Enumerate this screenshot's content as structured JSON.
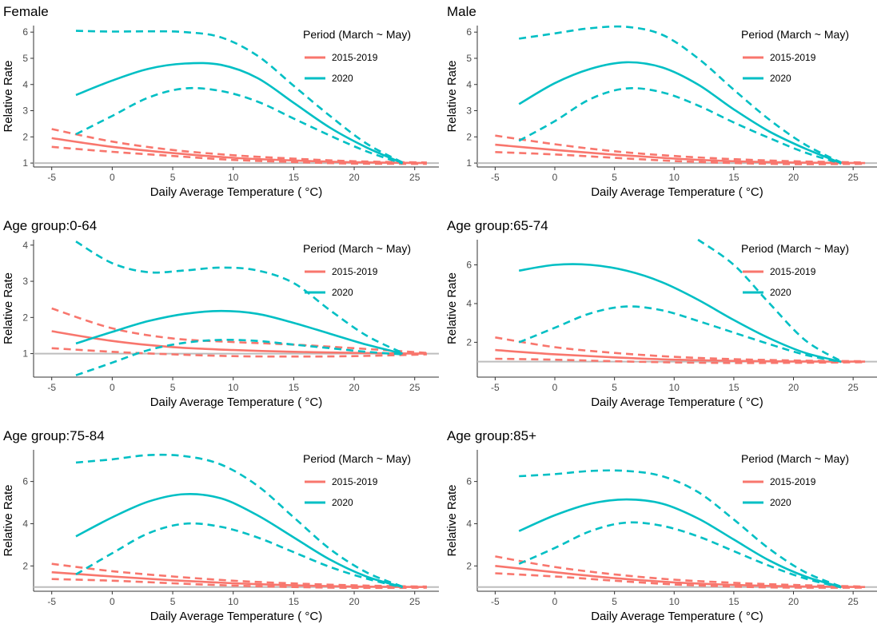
{
  "chart_data": [
    {
      "type": "line",
      "title": "Female",
      "xlabel": "Daily Average Temperature ( °C)",
      "ylabel": "Relative Rate",
      "xlim": [
        -6.5,
        27
      ],
      "ylim": [
        0.85,
        6.25
      ],
      "xticks": [
        -5,
        0,
        5,
        10,
        15,
        20,
        25
      ],
      "yticks": [
        1,
        2,
        3,
        4,
        5,
        6
      ],
      "reference_line": 1,
      "legend": {
        "title": "Period (March ~ May)",
        "position": "top-right",
        "entries": [
          "2015-2019",
          "2020"
        ]
      },
      "series": [
        {
          "name": "2015-2019",
          "color": "#F8766D",
          "fit": {
            "x": [
              -5,
              0,
              5,
              10,
              15,
              20,
              26
            ],
            "y": [
              1.95,
              1.62,
              1.38,
              1.2,
              1.1,
              1.03,
              1.0
            ]
          },
          "upper": {
            "x": [
              -5,
              0,
              5,
              10,
              15,
              20,
              26
            ],
            "y": [
              2.3,
              1.82,
              1.5,
              1.3,
              1.17,
              1.07,
              1.02
            ]
          },
          "lower": {
            "x": [
              -5,
              0,
              5,
              10,
              15,
              20,
              26
            ],
            "y": [
              1.62,
              1.43,
              1.27,
              1.12,
              1.04,
              0.98,
              0.97
            ]
          }
        },
        {
          "name": "2020",
          "color": "#00BFC4",
          "fit": {
            "x": [
              -3,
              0,
              3,
              6,
              9,
              12,
              15,
              18,
              21,
              24
            ],
            "y": [
              3.6,
              4.15,
              4.6,
              4.8,
              4.75,
              4.25,
              3.3,
              2.35,
              1.6,
              1.0
            ]
          },
          "upper": {
            "x": [
              -3,
              0,
              3,
              6,
              9,
              12,
              15,
              18,
              21,
              24
            ],
            "y": [
              6.05,
              6.02,
              6.03,
              6.0,
              5.8,
              5.1,
              3.95,
              2.8,
              1.75,
              1.02
            ]
          },
          "lower": {
            "x": [
              -3,
              0,
              3,
              6,
              9,
              12,
              15,
              18,
              21,
              24
            ],
            "y": [
              2.1,
              2.8,
              3.5,
              3.85,
              3.75,
              3.35,
              2.7,
              2.05,
              1.45,
              0.98
            ]
          }
        }
      ]
    },
    {
      "type": "line",
      "title": "Male",
      "xlabel": "Daily Average Temperature ( °C)",
      "ylabel": "Relative Rate",
      "xlim": [
        -6.5,
        27
      ],
      "ylim": [
        0.85,
        6.25
      ],
      "xticks": [
        -5,
        0,
        5,
        10,
        15,
        20,
        25
      ],
      "yticks": [
        1,
        2,
        3,
        4,
        5,
        6
      ],
      "reference_line": 1,
      "legend": {
        "title": "Period (March ~ May)",
        "position": "top-right",
        "entries": [
          "2015-2019",
          "2020"
        ]
      },
      "series": [
        {
          "name": "2015-2019",
          "color": "#F8766D",
          "fit": {
            "x": [
              -5,
              0,
              5,
              10,
              15,
              20,
              26
            ],
            "y": [
              1.7,
              1.5,
              1.32,
              1.17,
              1.07,
              1.02,
              1.0
            ]
          },
          "upper": {
            "x": [
              -5,
              0,
              5,
              10,
              15,
              20,
              26
            ],
            "y": [
              2.05,
              1.72,
              1.45,
              1.27,
              1.15,
              1.07,
              1.02
            ]
          },
          "lower": {
            "x": [
              -5,
              0,
              5,
              10,
              15,
              20,
              26
            ],
            "y": [
              1.42,
              1.33,
              1.2,
              1.08,
              1.0,
              0.96,
              0.97
            ]
          }
        },
        {
          "name": "2020",
          "color": "#00BFC4",
          "fit": {
            "x": [
              -3,
              0,
              3,
              6,
              9,
              12,
              15,
              18,
              21,
              24
            ],
            "y": [
              3.25,
              4.05,
              4.6,
              4.85,
              4.65,
              4.0,
              3.05,
              2.2,
              1.55,
              1.0
            ]
          },
          "upper": {
            "x": [
              -3,
              0,
              3,
              6,
              9,
              12,
              15,
              18,
              21,
              24
            ],
            "y": [
              5.75,
              5.95,
              6.15,
              6.2,
              5.9,
              5.0,
              3.8,
              2.65,
              1.7,
              1.02
            ]
          },
          "lower": {
            "x": [
              -3,
              0,
              3,
              6,
              9,
              12,
              15,
              18,
              21,
              24
            ],
            "y": [
              1.85,
              2.6,
              3.45,
              3.85,
              3.7,
              3.2,
              2.55,
              1.95,
              1.4,
              0.98
            ]
          }
        }
      ]
    },
    {
      "type": "line",
      "title": "Age group:0-64",
      "xlabel": "Daily Average Temperature ( °C)",
      "ylabel": "Relative Rate",
      "xlim": [
        -6.5,
        27
      ],
      "ylim": [
        0.35,
        4.15
      ],
      "xticks": [
        -5,
        0,
        5,
        10,
        15,
        20,
        25
      ],
      "yticks": [
        1,
        2,
        3,
        4
      ],
      "reference_line": 1,
      "legend": {
        "title": "Period (March ~ May)",
        "position": "top-right",
        "entries": [
          "2015-2019",
          "2020"
        ]
      },
      "series": [
        {
          "name": "2015-2019",
          "color": "#F8766D",
          "fit": {
            "x": [
              -5,
              0,
              5,
              10,
              15,
              20,
              26
            ],
            "y": [
              1.62,
              1.35,
              1.18,
              1.1,
              1.05,
              1.02,
              1.0
            ]
          },
          "upper": {
            "x": [
              -5,
              0,
              5,
              10,
              15,
              20,
              26
            ],
            "y": [
              2.25,
              1.7,
              1.42,
              1.32,
              1.25,
              1.15,
              1.02
            ]
          },
          "lower": {
            "x": [
              -5,
              0,
              5,
              10,
              15,
              20,
              26
            ],
            "y": [
              1.15,
              1.05,
              0.98,
              0.93,
              0.92,
              0.93,
              0.98
            ]
          }
        },
        {
          "name": "2020",
          "color": "#00BFC4",
          "fit": {
            "x": [
              -3,
              0,
              3,
              6,
              9,
              12,
              15,
              18,
              21,
              24
            ],
            "y": [
              1.28,
              1.6,
              1.9,
              2.1,
              2.18,
              2.1,
              1.85,
              1.55,
              1.25,
              1.0
            ]
          },
          "upper": {
            "x": [
              -3,
              0,
              3,
              6,
              9,
              12,
              15,
              18,
              21,
              24
            ],
            "y": [
              4.1,
              3.5,
              3.25,
              3.3,
              3.38,
              3.3,
              2.95,
              2.2,
              1.5,
              1.02
            ]
          },
          "lower": {
            "x": [
              -3,
              0,
              3,
              6,
              9,
              12,
              15,
              18,
              21,
              24
            ],
            "y": [
              0.4,
              0.75,
              1.1,
              1.3,
              1.38,
              1.35,
              1.25,
              1.15,
              1.05,
              0.98
            ]
          }
        }
      ]
    },
    {
      "type": "line",
      "title": "Age group:65-74",
      "xlabel": "Daily Average Temperature ( °C)",
      "ylabel": "Relative Rate",
      "xlim": [
        -6.5,
        27
      ],
      "ylim": [
        0.2,
        7.3
      ],
      "xticks": [
        -5,
        0,
        5,
        10,
        15,
        20,
        25
      ],
      "yticks": [
        2,
        4,
        6
      ],
      "reference_line": 1,
      "legend": {
        "title": "Period (March ~ May)",
        "position": "top-right",
        "entries": [
          "2015-2019",
          "2020"
        ]
      },
      "series": [
        {
          "name": "2015-2019",
          "color": "#F8766D",
          "fit": {
            "x": [
              -5,
              0,
              5,
              10,
              15,
              20,
              26
            ],
            "y": [
              1.6,
              1.38,
              1.22,
              1.1,
              1.04,
              1.01,
              1.0
            ]
          },
          "upper": {
            "x": [
              -5,
              0,
              5,
              10,
              15,
              20,
              26
            ],
            "y": [
              2.25,
              1.75,
              1.45,
              1.25,
              1.13,
              1.06,
              1.02
            ]
          },
          "lower": {
            "x": [
              -5,
              0,
              5,
              10,
              15,
              20,
              26
            ],
            "y": [
              1.15,
              1.1,
              1.02,
              0.96,
              0.93,
              0.94,
              0.97
            ]
          }
        },
        {
          "name": "2020",
          "color": "#00BFC4",
          "fit": {
            "x": [
              -3,
              0,
              3,
              6,
              9,
              12,
              15,
              18,
              21,
              24
            ],
            "y": [
              5.7,
              6.0,
              6.0,
              5.7,
              5.1,
              4.2,
              3.15,
              2.2,
              1.45,
              1.0
            ]
          },
          "upper": {
            "x": [
              -3,
              0,
              3,
              6,
              9,
              12,
              15,
              18,
              21,
              24
            ],
            "y": [
              null,
              null,
              null,
              null,
              null,
              7.3,
              6.0,
              4.0,
              2.1,
              1.02
            ]
          },
          "lower": {
            "x": [
              -3,
              0,
              3,
              6,
              9,
              12,
              15,
              18,
              21,
              24
            ],
            "y": [
              2.0,
              2.75,
              3.5,
              3.85,
              3.65,
              3.1,
              2.5,
              1.9,
              1.35,
              0.98
            ]
          }
        }
      ]
    },
    {
      "type": "line",
      "title": "Age group:75-84",
      "xlabel": "Daily Average Temperature ( °C)",
      "ylabel": "Relative Rate",
      "xlim": [
        -6.5,
        27
      ],
      "ylim": [
        0.8,
        7.5
      ],
      "xticks": [
        -5,
        0,
        5,
        10,
        15,
        20,
        25
      ],
      "yticks": [
        2,
        4,
        6
      ],
      "reference_line": 1,
      "legend": {
        "title": "Period (March ~ May)",
        "position": "top-right",
        "entries": [
          "2015-2019",
          "2020"
        ]
      },
      "series": [
        {
          "name": "2015-2019",
          "color": "#F8766D",
          "fit": {
            "x": [
              -5,
              0,
              5,
              10,
              15,
              20,
              26
            ],
            "y": [
              1.7,
              1.5,
              1.32,
              1.18,
              1.08,
              1.02,
              1.0
            ]
          },
          "upper": {
            "x": [
              -5,
              0,
              5,
              10,
              15,
              20,
              26
            ],
            "y": [
              2.1,
              1.75,
              1.5,
              1.3,
              1.17,
              1.08,
              1.02
            ]
          },
          "lower": {
            "x": [
              -5,
              0,
              5,
              10,
              15,
              20,
              26
            ],
            "y": [
              1.38,
              1.3,
              1.18,
              1.07,
              1.0,
              0.96,
              0.97
            ]
          }
        },
        {
          "name": "2020",
          "color": "#00BFC4",
          "fit": {
            "x": [
              -3,
              0,
              3,
              6,
              9,
              12,
              15,
              18,
              21,
              24
            ],
            "y": [
              3.4,
              4.3,
              5.05,
              5.4,
              5.2,
              4.4,
              3.35,
              2.3,
              1.5,
              1.0
            ]
          },
          "upper": {
            "x": [
              -3,
              0,
              3,
              6,
              9,
              12,
              15,
              18,
              21,
              24
            ],
            "y": [
              6.9,
              7.05,
              7.25,
              7.2,
              6.8,
              5.8,
              4.3,
              2.8,
              1.7,
              1.02
            ]
          },
          "lower": {
            "x": [
              -3,
              0,
              3,
              6,
              9,
              12,
              15,
              18,
              21,
              24
            ],
            "y": [
              1.6,
              2.6,
              3.55,
              4.0,
              3.85,
              3.35,
              2.65,
              1.95,
              1.4,
              0.98
            ]
          }
        }
      ]
    },
    {
      "type": "line",
      "title": "Age group:85+",
      "xlabel": "Daily Average Temperature ( °C)",
      "ylabel": "Relative Rate",
      "xlim": [
        -6.5,
        27
      ],
      "ylim": [
        0.8,
        7.5
      ],
      "xticks": [
        -5,
        0,
        5,
        10,
        15,
        20,
        25
      ],
      "yticks": [
        2,
        4,
        6
      ],
      "reference_line": 1,
      "legend": {
        "title": "Period (March ~ May)",
        "position": "top-right",
        "entries": [
          "2015-2019",
          "2020"
        ]
      },
      "series": [
        {
          "name": "2015-2019",
          "color": "#F8766D",
          "fit": {
            "x": [
              -5,
              0,
              5,
              10,
              15,
              20,
              26
            ],
            "y": [
              2.0,
              1.7,
              1.42,
              1.22,
              1.1,
              1.03,
              1.0
            ]
          },
          "upper": {
            "x": [
              -5,
              0,
              5,
              10,
              15,
              20,
              26
            ],
            "y": [
              2.45,
              1.95,
              1.6,
              1.35,
              1.2,
              1.1,
              1.02
            ]
          },
          "lower": {
            "x": [
              -5,
              0,
              5,
              10,
              15,
              20,
              26
            ],
            "y": [
              1.65,
              1.5,
              1.3,
              1.12,
              1.02,
              0.97,
              0.97
            ]
          }
        },
        {
          "name": "2020",
          "color": "#00BFC4",
          "fit": {
            "x": [
              -3,
              0,
              3,
              6,
              9,
              12,
              15,
              18,
              21,
              24
            ],
            "y": [
              3.65,
              4.4,
              4.95,
              5.15,
              4.95,
              4.25,
              3.25,
              2.25,
              1.5,
              1.0
            ]
          },
          "upper": {
            "x": [
              -3,
              0,
              3,
              6,
              9,
              12,
              15,
              18,
              21,
              24
            ],
            "y": [
              6.25,
              6.35,
              6.5,
              6.5,
              6.25,
              5.5,
              4.2,
              2.8,
              1.7,
              1.02
            ]
          },
          "lower": {
            "x": [
              -3,
              0,
              3,
              6,
              9,
              12,
              15,
              18,
              21,
              24
            ],
            "y": [
              2.1,
              2.85,
              3.65,
              4.05,
              3.9,
              3.4,
              2.7,
              2.0,
              1.4,
              0.98
            ]
          }
        }
      ]
    }
  ]
}
